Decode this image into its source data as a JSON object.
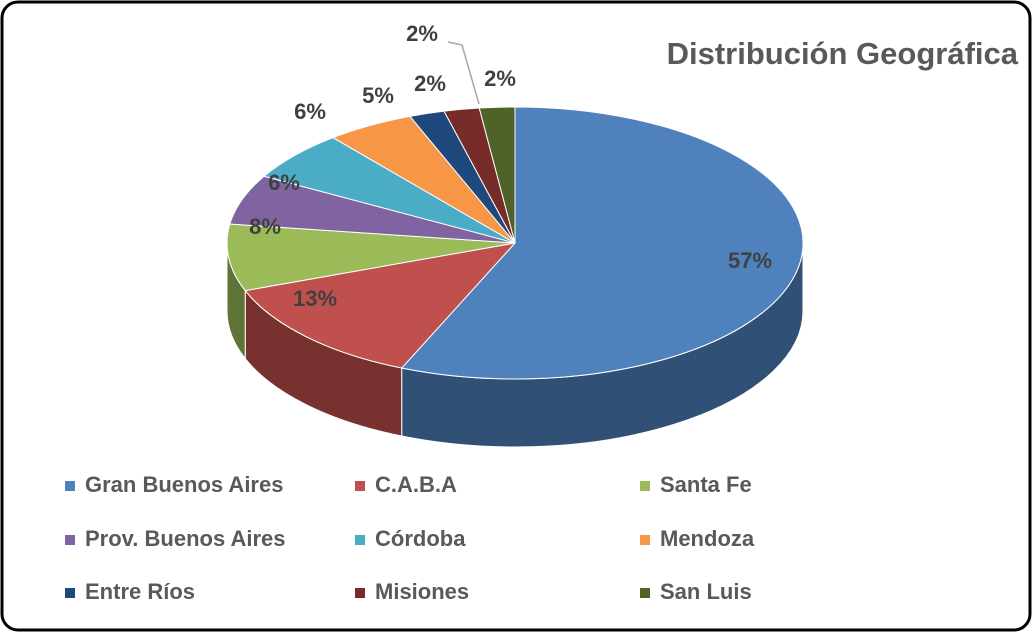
{
  "chart_data": {
    "type": "pie3d",
    "title": "Distribución Geográfica",
    "categories": [
      "Gran Buenos Aires",
      "C.A.B.A",
      "Santa Fe",
      "Prov. Buenos Aires",
      "Córdoba",
      "Mendoza",
      "Entre Ríos",
      "Misiones",
      "San Luis"
    ],
    "values": [
      57,
      13,
      8,
      6,
      6,
      5,
      2,
      2,
      2
    ],
    "value_labels": [
      "57%",
      "13%",
      "8%",
      "6%",
      "6%",
      "5%",
      "2%",
      "2%",
      "2%"
    ],
    "colors": [
      "#4f81bd",
      "#c0504d",
      "#9bbb59",
      "#8064a2",
      "#4bacc6",
      "#f79646",
      "#1f497d",
      "#772c2a",
      "#4f6228"
    ]
  }
}
